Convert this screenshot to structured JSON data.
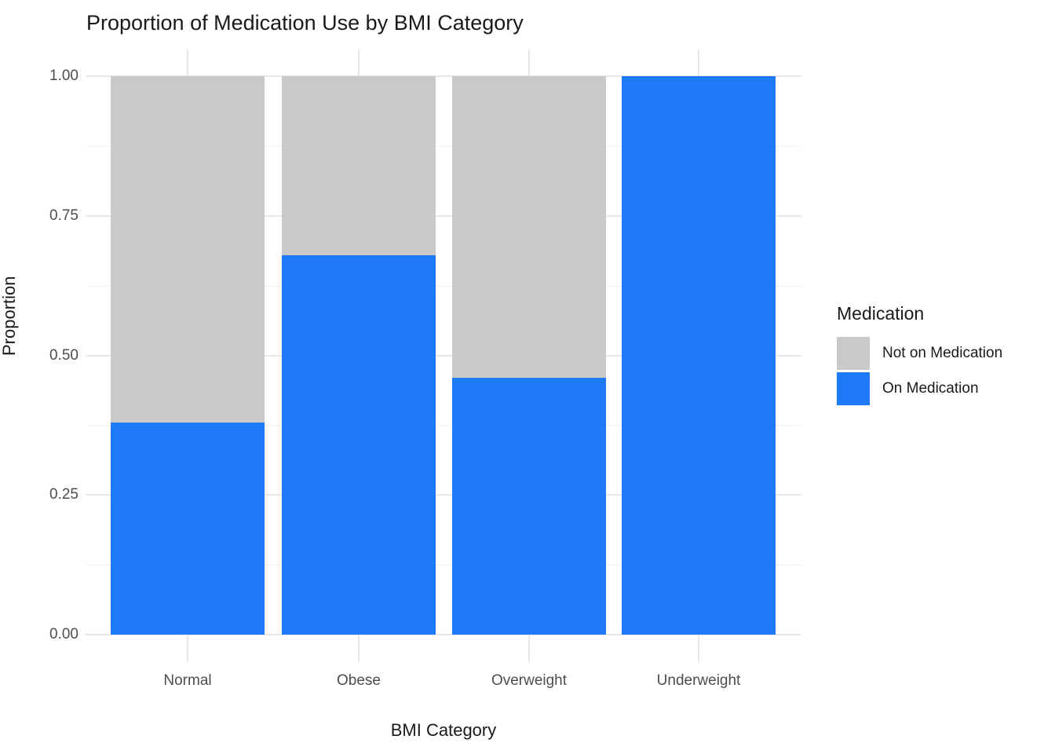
{
  "chart_data": {
    "type": "bar",
    "stacked": true,
    "title": "Proportion of Medication Use by BMI Category",
    "xlabel": "BMI Category",
    "ylabel": "Proportion",
    "categories": [
      "Normal",
      "Obese",
      "Overweight",
      "Underweight"
    ],
    "series": [
      {
        "name": "On Medication",
        "color": "#1E7AF7",
        "values": [
          0.38,
          0.68,
          0.46,
          1.0
        ]
      },
      {
        "name": "Not on Medication",
        "color": "#C9C9C9",
        "values": [
          0.62,
          0.32,
          0.54,
          0.0
        ]
      }
    ],
    "ylim": [
      0,
      1
    ],
    "y_ticks": [
      {
        "value": 0.0,
        "label": "0.00"
      },
      {
        "value": 0.25,
        "label": "0.25"
      },
      {
        "value": 0.5,
        "label": "0.50"
      },
      {
        "value": 0.75,
        "label": "0.75"
      },
      {
        "value": 1.0,
        "label": "1.00"
      }
    ],
    "grid": {
      "major_color": "#E8E8E8",
      "minor_color": "#F1F1F1",
      "minor_values": [
        0.125,
        0.375,
        0.625,
        0.875
      ],
      "vertical_at_categories": true
    },
    "legend": {
      "title": "Medication",
      "position": "right",
      "items": [
        {
          "label": "Not on Medication",
          "color": "#C9C9C9"
        },
        {
          "label": "On Medication",
          "color": "#1E7AF7"
        }
      ]
    },
    "text_colors": {
      "title": "#1A1A1A",
      "axis_title": "#1A1A1A",
      "tick": "#4D4D4D"
    }
  }
}
